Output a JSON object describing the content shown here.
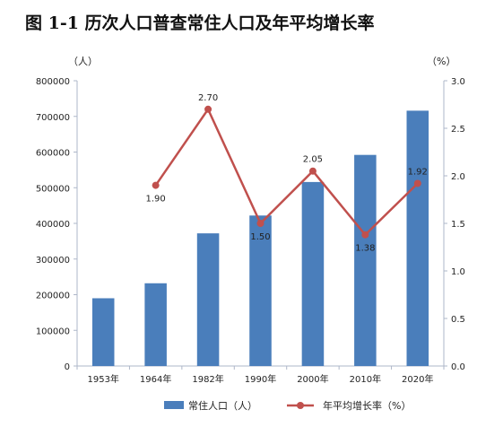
{
  "chart_data": {
    "title": "图 1-1    历次人口普查常住人口及年平均增长率",
    "categories": [
      "1953年",
      "1964年",
      "1982年",
      "1990年",
      "2000年",
      "2010年",
      "2020年"
    ],
    "series": [
      {
        "name": "常住人口（人）",
        "type": "bar",
        "axis": "left",
        "values": [
          190000,
          232000,
          372000,
          422000,
          516000,
          592000,
          716000
        ]
      },
      {
        "name": "年平均增长率（%）",
        "type": "line",
        "axis": "right",
        "values": [
          null,
          1.9,
          2.7,
          1.5,
          2.05,
          1.38,
          1.92
        ],
        "labels": [
          null,
          "1.90",
          "2.70",
          "1.50",
          "2.05",
          "1.38",
          "1.92"
        ]
      }
    ],
    "y_left": {
      "unit": "（人）",
      "range": [
        0,
        800000
      ],
      "ticks": [
        "0",
        "100000",
        "200000",
        "300000",
        "400000",
        "500000",
        "600000",
        "700000",
        "800000"
      ]
    },
    "y_right": {
      "unit": "（%）",
      "range": [
        0,
        3.0
      ],
      "ticks": [
        "0.0",
        "0.5",
        "1.0",
        "1.5",
        "2.0",
        "2.5",
        "3.0"
      ]
    },
    "grid": false,
    "legend_position": "bottom",
    "colors": {
      "bar": "#4a7ebb",
      "line": "#c0504d",
      "axis": "#aeb7c9",
      "text": "#222222"
    }
  }
}
